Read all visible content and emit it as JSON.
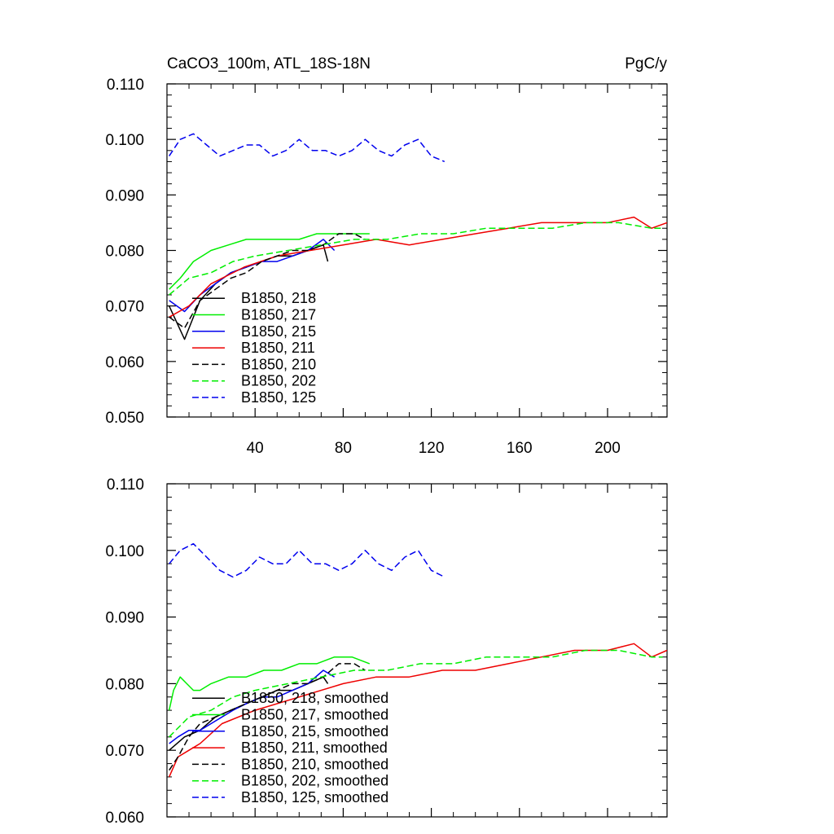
{
  "figure": {
    "title_left": "CaCO3_100m, ATL_18S-18N",
    "title_right": "PgC/y"
  },
  "colors": {
    "black": "#000000",
    "green": "#00ee00",
    "blue": "#0000ee",
    "red": "#ee0000"
  },
  "chart_data": [
    {
      "type": "line",
      "title": "CaCO3_100m, ATL_18S-18N",
      "units": "PgC/y",
      "xlim": [
        0,
        227
      ],
      "ylim": [
        0.05,
        0.11
      ],
      "xticks": [
        40,
        80,
        120,
        160,
        200
      ],
      "xtick_labels": [
        "40",
        "80",
        "120",
        "160",
        "200"
      ],
      "yticks": [
        0.05,
        0.06,
        0.07,
        0.08,
        0.09,
        0.1,
        0.11
      ],
      "ytick_labels": [
        "0.050",
        "0.060",
        "0.070",
        "0.080",
        "0.090",
        "0.100",
        "0.110"
      ],
      "legend_position": "bottom-left",
      "series": [
        {
          "name": "B1850, 218",
          "label": "B1850, 218",
          "color": "#000000",
          "dash": "solid",
          "x": [
            1,
            8,
            15,
            22,
            29,
            36,
            43,
            50,
            57,
            64,
            71,
            73
          ],
          "y": [
            0.07,
            0.064,
            0.071,
            0.074,
            0.076,
            0.077,
            0.078,
            0.079,
            0.079,
            0.08,
            0.081,
            0.078
          ]
        },
        {
          "name": "B1850, 217",
          "label": "B1850, 217",
          "color": "#00ee00",
          "dash": "solid",
          "x": [
            1,
            6,
            12,
            20,
            28,
            36,
            44,
            52,
            60,
            68,
            76,
            84,
            92
          ],
          "y": [
            0.073,
            0.075,
            0.078,
            0.08,
            0.081,
            0.082,
            0.082,
            0.082,
            0.082,
            0.083,
            0.083,
            0.083,
            0.083
          ]
        },
        {
          "name": "B1850, 215",
          "label": "B1850, 215",
          "color": "#0000ee",
          "dash": "solid",
          "x": [
            1,
            8,
            15,
            22,
            29,
            36,
            43,
            50,
            57,
            64,
            71,
            76
          ],
          "y": [
            0.071,
            0.069,
            0.072,
            0.074,
            0.076,
            0.077,
            0.078,
            0.078,
            0.079,
            0.08,
            0.082,
            0.08
          ]
        },
        {
          "name": "B1850, 211",
          "label": "B1850, 211",
          "color": "#ee0000",
          "dash": "solid",
          "x": [
            1,
            10,
            20,
            35,
            50,
            65,
            80,
            95,
            110,
            125,
            140,
            155,
            170,
            185,
            200,
            212,
            220,
            227
          ],
          "y": [
            0.068,
            0.07,
            0.074,
            0.077,
            0.079,
            0.08,
            0.081,
            0.082,
            0.081,
            0.082,
            0.083,
            0.084,
            0.085,
            0.085,
            0.085,
            0.086,
            0.084,
            0.085
          ]
        },
        {
          "name": "B1850, 210",
          "label": "B1850, 210",
          "color": "#000000",
          "dash": "dashed",
          "x": [
            1,
            8,
            15,
            22,
            29,
            36,
            43,
            50,
            57,
            64,
            71,
            78,
            85,
            90
          ],
          "y": [
            0.068,
            0.066,
            0.071,
            0.073,
            0.075,
            0.076,
            0.078,
            0.079,
            0.08,
            0.08,
            0.081,
            0.083,
            0.083,
            0.082
          ]
        },
        {
          "name": "B1850, 202",
          "label": "B1850, 202",
          "color": "#00ee00",
          "dash": "dashed",
          "x": [
            1,
            10,
            20,
            30,
            40,
            55,
            70,
            85,
            100,
            115,
            130,
            145,
            160,
            175,
            190,
            205,
            220,
            225
          ],
          "y": [
            0.072,
            0.075,
            0.076,
            0.078,
            0.079,
            0.08,
            0.081,
            0.082,
            0.082,
            0.083,
            0.083,
            0.084,
            0.084,
            0.084,
            0.085,
            0.085,
            0.084,
            0.084
          ]
        },
        {
          "name": "B1850, 125",
          "label": "B1850, 125",
          "color": "#0000ee",
          "dash": "dashed",
          "x": [
            1,
            6,
            12,
            18,
            24,
            30,
            36,
            42,
            48,
            54,
            60,
            66,
            72,
            78,
            84,
            90,
            96,
            102,
            108,
            114,
            120,
            126
          ],
          "y": [
            0.097,
            0.1,
            0.101,
            0.099,
            0.097,
            0.098,
            0.099,
            0.099,
            0.097,
            0.098,
            0.1,
            0.098,
            0.098,
            0.097,
            0.098,
            0.1,
            0.098,
            0.097,
            0.099,
            0.1,
            0.097,
            0.096
          ]
        }
      ]
    },
    {
      "type": "line",
      "title": "",
      "xlim": [
        0,
        227
      ],
      "ylim": [
        0.06,
        0.11
      ],
      "yticks": [
        0.06,
        0.07,
        0.08,
        0.09,
        0.1,
        0.11
      ],
      "ytick_labels": [
        "0.060",
        "0.070",
        "0.080",
        "0.090",
        "0.100",
        "0.110"
      ],
      "legend_position": "bottom-left",
      "series": [
        {
          "name": "B1850, 218, smoothed",
          "label": "B1850, 218, smoothed",
          "color": "#000000",
          "dash": "solid",
          "x": [
            1,
            8,
            15,
            22,
            29,
            36,
            43,
            50,
            57,
            64,
            71,
            73
          ],
          "y": [
            0.07,
            0.072,
            0.073,
            0.075,
            0.076,
            0.077,
            0.078,
            0.079,
            0.079,
            0.08,
            0.081,
            0.08
          ]
        },
        {
          "name": "B1850, 217, smoothed",
          "label": "B1850, 217, smoothed",
          "color": "#00ee00",
          "dash": "solid",
          "x": [
            1,
            3,
            6,
            9,
            12,
            15,
            20,
            28,
            36,
            44,
            52,
            60,
            68,
            76,
            84,
            92
          ],
          "y": [
            0.076,
            0.079,
            0.081,
            0.08,
            0.079,
            0.079,
            0.08,
            0.081,
            0.081,
            0.082,
            0.082,
            0.083,
            0.083,
            0.084,
            0.084,
            0.083
          ]
        },
        {
          "name": "B1850, 215, smoothed",
          "label": "B1850, 215, smoothed",
          "color": "#0000ee",
          "dash": "solid",
          "x": [
            1,
            5,
            10,
            15,
            20,
            25,
            30,
            36,
            43,
            50,
            57,
            64,
            71,
            76
          ],
          "y": [
            0.071,
            0.072,
            0.073,
            0.073,
            0.074,
            0.075,
            0.076,
            0.077,
            0.078,
            0.078,
            0.079,
            0.08,
            0.082,
            0.081
          ]
        },
        {
          "name": "B1850, 211, smoothed",
          "label": "B1850, 211, smoothed",
          "color": "#ee0000",
          "dash": "solid",
          "x": [
            1,
            5,
            10,
            15,
            25,
            40,
            60,
            80,
            95,
            110,
            125,
            140,
            155,
            170,
            185,
            200,
            212,
            220,
            227
          ],
          "y": [
            0.066,
            0.069,
            0.07,
            0.071,
            0.074,
            0.076,
            0.078,
            0.08,
            0.081,
            0.081,
            0.082,
            0.082,
            0.083,
            0.084,
            0.085,
            0.085,
            0.086,
            0.084,
            0.085
          ]
        },
        {
          "name": "B1850, 210, smoothed",
          "label": "B1850, 210, smoothed",
          "color": "#000000",
          "dash": "dashed",
          "x": [
            1,
            5,
            10,
            15,
            22,
            29,
            36,
            43,
            50,
            57,
            64,
            71,
            78,
            85,
            90
          ],
          "y": [
            0.067,
            0.069,
            0.072,
            0.074,
            0.075,
            0.076,
            0.077,
            0.078,
            0.079,
            0.08,
            0.08,
            0.081,
            0.083,
            0.083,
            0.082
          ]
        },
        {
          "name": "B1850, 202, smoothed",
          "label": "B1850, 202, smoothed",
          "color": "#00ee00",
          "dash": "dashed",
          "x": [
            1,
            10,
            20,
            30,
            40,
            55,
            70,
            85,
            100,
            115,
            130,
            145,
            160,
            175,
            190,
            205,
            220,
            225
          ],
          "y": [
            0.072,
            0.075,
            0.076,
            0.078,
            0.079,
            0.08,
            0.081,
            0.082,
            0.082,
            0.083,
            0.083,
            0.084,
            0.084,
            0.084,
            0.085,
            0.085,
            0.084,
            0.084
          ]
        },
        {
          "name": "B1850, 125, smoothed",
          "label": "B1850, 125, smoothed",
          "color": "#0000ee",
          "dash": "dashed",
          "x": [
            1,
            6,
            12,
            18,
            24,
            30,
            36,
            42,
            48,
            54,
            60,
            66,
            72,
            78,
            84,
            90,
            96,
            102,
            108,
            114,
            120,
            126
          ],
          "y": [
            0.098,
            0.1,
            0.101,
            0.099,
            0.097,
            0.096,
            0.097,
            0.099,
            0.098,
            0.098,
            0.1,
            0.098,
            0.098,
            0.097,
            0.098,
            0.1,
            0.098,
            0.097,
            0.099,
            0.1,
            0.097,
            0.096
          ]
        }
      ]
    }
  ]
}
